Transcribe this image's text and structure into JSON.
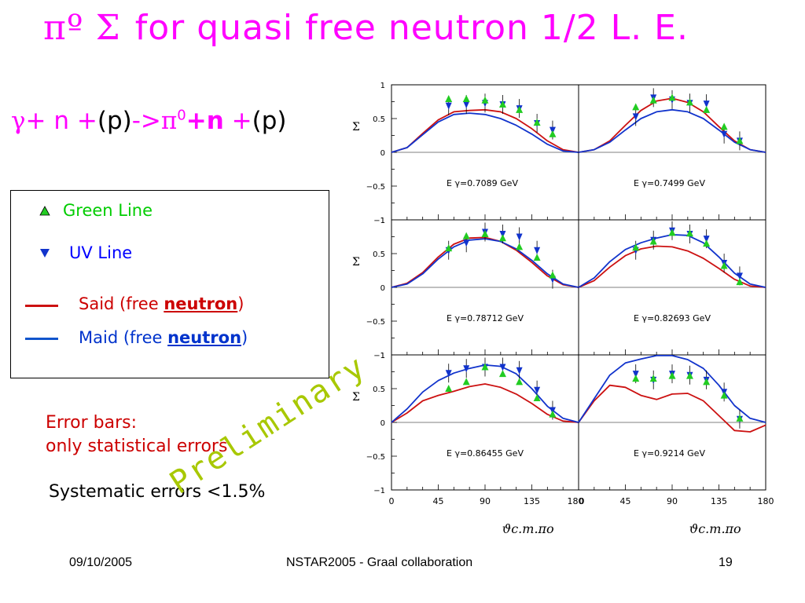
{
  "title": {
    "greek": "πº  Σ",
    "text": "for  quasi free neutron 1/2  L. E."
  },
  "reaction": {
    "gamma": "γ",
    "plus1": "+ ",
    "n1": "n",
    "plus2": " +",
    "p1": "(p)",
    "arrow": "->",
    "pi": "π",
    "pi_sup": "0",
    "plus3": "+",
    "n2": "n",
    "plus4": " +",
    "p2": "(p)"
  },
  "legend": {
    "green_label": "Green Line",
    "uv_label": "UV Line",
    "said_prefix": "Said (free ",
    "said_bold": "neutron",
    "said_suffix": ")",
    "maid_prefix": "Maid (free ",
    "maid_bold": "neutron",
    "maid_suffix": ")"
  },
  "notes": {
    "error_line1": "Error bars:",
    "error_line2": "only statistical errors",
    "systematic": "Systematic errors <1.5%"
  },
  "watermark": "Preliminary",
  "footer": {
    "date": "09/10/2005",
    "center": "NSTAR2005 - Graal collaboration",
    "page": "19"
  },
  "colors": {
    "title": "#ff00ff",
    "said": "#cc1111",
    "maid": "#1133cc",
    "green_marker": "#22cc22",
    "uv_marker": "#1133cc",
    "watermark": "#a8c800",
    "error_text": "#cc0000",
    "green_text": "#00cc00",
    "uv_text": "#0000ff"
  },
  "chart_data": {
    "type": "scatter",
    "layout": "3x2 grid of panels",
    "ylabel": "Σ",
    "xlabel": "ϑc.m.πo",
    "xlim": [
      0,
      180
    ],
    "ylim": [
      -1,
      1
    ],
    "x_ticks": [
      "0",
      "45",
      "90",
      "135",
      "180"
    ],
    "y_ticks": [
      "1",
      "0.5",
      "0",
      "−0.5",
      "−1"
    ],
    "x_tick_row": [
      "0",
      "45",
      "90",
      "135",
      "180",
      "0",
      "45",
      "90",
      "135",
      "180"
    ],
    "panels": [
      {
        "energy_label": "E γ=0.7089 GeV",
        "green": [
          [
            55,
            0.79
          ],
          [
            72,
            0.79
          ],
          [
            90,
            0.77
          ],
          [
            107,
            0.71
          ],
          [
            123,
            0.63
          ],
          [
            140,
            0.44
          ],
          [
            155,
            0.27
          ]
        ],
        "uv": [
          [
            55,
            0.69
          ],
          [
            72,
            0.71
          ],
          [
            90,
            0.73
          ],
          [
            107,
            0.71
          ],
          [
            123,
            0.65
          ],
          [
            140,
            0.43
          ],
          [
            155,
            0.33
          ]
        ],
        "said": [
          [
            0,
            0
          ],
          [
            15,
            0.07
          ],
          [
            30,
            0.28
          ],
          [
            45,
            0.48
          ],
          [
            60,
            0.6
          ],
          [
            75,
            0.62
          ],
          [
            90,
            0.63
          ],
          [
            105,
            0.6
          ],
          [
            120,
            0.5
          ],
          [
            135,
            0.35
          ],
          [
            150,
            0.17
          ],
          [
            165,
            0.04
          ],
          [
            180,
            0
          ]
        ],
        "maid": [
          [
            0,
            0
          ],
          [
            15,
            0.07
          ],
          [
            30,
            0.26
          ],
          [
            45,
            0.45
          ],
          [
            60,
            0.56
          ],
          [
            75,
            0.58
          ],
          [
            90,
            0.56
          ],
          [
            105,
            0.5
          ],
          [
            120,
            0.4
          ],
          [
            135,
            0.27
          ],
          [
            150,
            0.12
          ],
          [
            165,
            0.02
          ],
          [
            180,
            0
          ]
        ]
      },
      {
        "energy_label": "E γ=0.7499 GeV",
        "green": [
          [
            55,
            0.67
          ],
          [
            72,
            0.77
          ],
          [
            90,
            0.81
          ],
          [
            107,
            0.74
          ],
          [
            123,
            0.63
          ],
          [
            140,
            0.38
          ],
          [
            155,
            0.17
          ]
        ],
        "uv": [
          [
            55,
            0.53
          ],
          [
            72,
            0.81
          ],
          [
            90,
            0.78
          ],
          [
            107,
            0.73
          ],
          [
            123,
            0.72
          ],
          [
            140,
            0.27
          ],
          [
            155,
            0.17
          ]
        ],
        "said": [
          [
            0,
            0
          ],
          [
            15,
            0.04
          ],
          [
            30,
            0.17
          ],
          [
            45,
            0.4
          ],
          [
            60,
            0.62
          ],
          [
            75,
            0.76
          ],
          [
            90,
            0.8
          ],
          [
            105,
            0.74
          ],
          [
            120,
            0.6
          ],
          [
            135,
            0.38
          ],
          [
            150,
            0.17
          ],
          [
            165,
            0.04
          ],
          [
            180,
            0
          ]
        ],
        "maid": [
          [
            0,
            0
          ],
          [
            15,
            0.04
          ],
          [
            30,
            0.15
          ],
          [
            45,
            0.33
          ],
          [
            60,
            0.5
          ],
          [
            75,
            0.6
          ],
          [
            90,
            0.63
          ],
          [
            105,
            0.6
          ],
          [
            120,
            0.5
          ],
          [
            135,
            0.33
          ],
          [
            150,
            0.15
          ],
          [
            165,
            0.04
          ],
          [
            180,
            0
          ]
        ]
      },
      {
        "energy_label": "E γ=0.78712 GeV",
        "green": [
          [
            55,
            0.58
          ],
          [
            72,
            0.76
          ],
          [
            90,
            0.79
          ],
          [
            107,
            0.73
          ],
          [
            123,
            0.6
          ],
          [
            140,
            0.44
          ],
          [
            155,
            0.18
          ]
        ],
        "uv": [
          [
            55,
            0.55
          ],
          [
            72,
            0.66
          ],
          [
            90,
            0.82
          ],
          [
            107,
            0.79
          ],
          [
            123,
            0.75
          ],
          [
            140,
            0.55
          ],
          [
            155,
            0.12
          ]
        ],
        "said": [
          [
            0,
            0
          ],
          [
            15,
            0.06
          ],
          [
            30,
            0.22
          ],
          [
            45,
            0.45
          ],
          [
            60,
            0.64
          ],
          [
            75,
            0.73
          ],
          [
            90,
            0.74
          ],
          [
            105,
            0.68
          ],
          [
            120,
            0.55
          ],
          [
            135,
            0.37
          ],
          [
            150,
            0.17
          ],
          [
            165,
            0.04
          ],
          [
            180,
            0
          ]
        ],
        "maid": [
          [
            0,
            0
          ],
          [
            15,
            0.05
          ],
          [
            30,
            0.2
          ],
          [
            45,
            0.42
          ],
          [
            60,
            0.6
          ],
          [
            75,
            0.7
          ],
          [
            90,
            0.72
          ],
          [
            105,
            0.68
          ],
          [
            120,
            0.57
          ],
          [
            135,
            0.4
          ],
          [
            150,
            0.2
          ],
          [
            165,
            0.05
          ],
          [
            180,
            0
          ]
        ]
      },
      {
        "energy_label": "E γ=0.82693 GeV",
        "green": [
          [
            55,
            0.59
          ],
          [
            72,
            0.68
          ],
          [
            90,
            0.81
          ],
          [
            107,
            0.8
          ],
          [
            123,
            0.65
          ],
          [
            140,
            0.32
          ],
          [
            155,
            0.08
          ]
        ],
        "uv": [
          [
            55,
            0.55
          ],
          [
            72,
            0.7
          ],
          [
            90,
            0.84
          ],
          [
            107,
            0.79
          ],
          [
            123,
            0.72
          ],
          [
            140,
            0.36
          ],
          [
            155,
            0.17
          ]
        ],
        "said": [
          [
            0,
            0
          ],
          [
            15,
            0.1
          ],
          [
            30,
            0.3
          ],
          [
            45,
            0.47
          ],
          [
            60,
            0.57
          ],
          [
            75,
            0.61
          ],
          [
            90,
            0.6
          ],
          [
            105,
            0.54
          ],
          [
            120,
            0.43
          ],
          [
            135,
            0.28
          ],
          [
            150,
            0.12
          ],
          [
            165,
            0.02
          ],
          [
            180,
            0
          ]
        ],
        "maid": [
          [
            0,
            0
          ],
          [
            15,
            0.14
          ],
          [
            30,
            0.38
          ],
          [
            45,
            0.56
          ],
          [
            60,
            0.66
          ],
          [
            75,
            0.73
          ],
          [
            90,
            0.78
          ],
          [
            105,
            0.77
          ],
          [
            120,
            0.66
          ],
          [
            135,
            0.45
          ],
          [
            150,
            0.21
          ],
          [
            165,
            0.05
          ],
          [
            180,
            0
          ]
        ]
      },
      {
        "energy_label": "E γ=0.86455 GeV",
        "green": [
          [
            55,
            0.5
          ],
          [
            72,
            0.6
          ],
          [
            90,
            0.82
          ],
          [
            107,
            0.72
          ],
          [
            123,
            0.6
          ],
          [
            140,
            0.36
          ],
          [
            155,
            0.12
          ]
        ],
        "uv": [
          [
            55,
            0.73
          ],
          [
            72,
            0.8
          ],
          [
            90,
            0.82
          ],
          [
            107,
            0.82
          ],
          [
            123,
            0.77
          ],
          [
            140,
            0.48
          ],
          [
            155,
            0.18
          ]
        ],
        "said": [
          [
            0,
            0
          ],
          [
            15,
            0.14
          ],
          [
            30,
            0.32
          ],
          [
            45,
            0.4
          ],
          [
            60,
            0.46
          ],
          [
            75,
            0.53
          ],
          [
            90,
            0.57
          ],
          [
            105,
            0.52
          ],
          [
            120,
            0.42
          ],
          [
            135,
            0.28
          ],
          [
            150,
            0.12
          ],
          [
            165,
            0.02
          ],
          [
            180,
            0
          ]
        ],
        "maid": [
          [
            0,
            0
          ],
          [
            15,
            0.2
          ],
          [
            30,
            0.45
          ],
          [
            45,
            0.62
          ],
          [
            60,
            0.73
          ],
          [
            75,
            0.8
          ],
          [
            90,
            0.85
          ],
          [
            105,
            0.83
          ],
          [
            120,
            0.72
          ],
          [
            135,
            0.5
          ],
          [
            150,
            0.24
          ],
          [
            165,
            0.06
          ],
          [
            180,
            0
          ]
        ]
      },
      {
        "energy_label": "E γ=0.9214 GeV",
        "green": [
          [
            55,
            0.65
          ],
          [
            72,
            0.65
          ],
          [
            90,
            0.69
          ],
          [
            107,
            0.69
          ],
          [
            123,
            0.6
          ],
          [
            140,
            0.4
          ],
          [
            155,
            0.06
          ]
        ],
        "uv": [
          [
            55,
            0.72
          ],
          [
            72,
            0.63
          ],
          [
            90,
            0.72
          ],
          [
            107,
            0.7
          ],
          [
            123,
            0.63
          ],
          [
            140,
            0.45
          ],
          [
            155,
            0.05
          ]
        ],
        "said": [
          [
            0,
            0
          ],
          [
            15,
            0.32
          ],
          [
            30,
            0.55
          ],
          [
            45,
            0.52
          ],
          [
            60,
            0.4
          ],
          [
            75,
            0.34
          ],
          [
            90,
            0.42
          ],
          [
            105,
            0.43
          ],
          [
            120,
            0.32
          ],
          [
            135,
            0.1
          ],
          [
            150,
            -0.12
          ],
          [
            165,
            -0.14
          ],
          [
            180,
            -0.04
          ]
        ],
        "maid": [
          [
            0,
            0
          ],
          [
            15,
            0.35
          ],
          [
            30,
            0.7
          ],
          [
            45,
            0.88
          ],
          [
            60,
            0.94
          ],
          [
            75,
            0.99
          ],
          [
            90,
            0.99
          ],
          [
            105,
            0.93
          ],
          [
            120,
            0.8
          ],
          [
            135,
            0.55
          ],
          [
            150,
            0.25
          ],
          [
            165,
            0.06
          ],
          [
            180,
            0
          ]
        ]
      }
    ]
  }
}
